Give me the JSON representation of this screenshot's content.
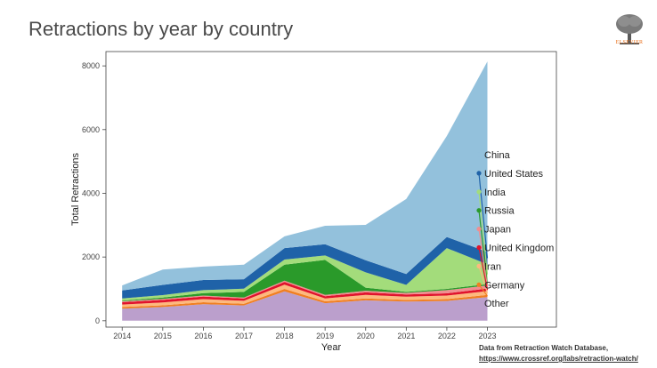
{
  "page": {
    "title": "Retractions by year by country",
    "logo_text": "ELSEVIER",
    "source_line1": "Data from Retraction Watch Database,",
    "source_line2": "https://www.crossref.org/labs/retraction-watch/"
  },
  "chart_data": {
    "type": "area",
    "stacked": true,
    "title": "",
    "xlabel": "Year",
    "ylabel": "Total Retractions",
    "x": [
      2014,
      2015,
      2016,
      2017,
      2018,
      2019,
      2020,
      2021,
      2022,
      2023
    ],
    "xlim": [
      2013.6,
      2024.7
    ],
    "ylim": [
      -200,
      8450
    ],
    "yticks": [
      0,
      2000,
      4000,
      6000,
      8000
    ],
    "grid": false,
    "legend_position": "right",
    "series": [
      {
        "name": "Other",
        "color": "#bb9fcc",
        "values": [
          380,
          430,
          520,
          480,
          920,
          550,
          640,
          600,
          620,
          740
        ]
      },
      {
        "name": "Germany",
        "color": "#f07f22",
        "values": [
          50,
          55,
          60,
          55,
          80,
          60,
          60,
          55,
          60,
          70
        ]
      },
      {
        "name": "Iran",
        "color": "#fdb97e",
        "values": [
          80,
          90,
          100,
          90,
          130,
          90,
          110,
          100,
          110,
          120
        ]
      },
      {
        "name": "United Kingdom",
        "color": "#e0132c",
        "values": [
          70,
          80,
          80,
          70,
          90,
          70,
          80,
          70,
          70,
          80
        ]
      },
      {
        "name": "Japan",
        "color": "#f08e90",
        "values": [
          30,
          30,
          30,
          30,
          40,
          40,
          50,
          50,
          100,
          100
        ]
      },
      {
        "name": "Russia",
        "color": "#2a9a2a",
        "values": [
          20,
          40,
          80,
          180,
          500,
          1100,
          100,
          30,
          40,
          40
        ]
      },
      {
        "name": "India",
        "color": "#a3dc7b",
        "values": [
          70,
          80,
          90,
          100,
          160,
          140,
          480,
          220,
          1280,
          620
        ]
      },
      {
        "name": "United States",
        "color": "#1f62a8",
        "values": [
          250,
          320,
          320,
          300,
          360,
          350,
          380,
          340,
          350,
          390
        ]
      },
      {
        "name": "China",
        "color": "#93c1dc",
        "values": [
          160,
          480,
          420,
          455,
          370,
          580,
          1110,
          2355,
          3170,
          5980
        ]
      }
    ]
  }
}
